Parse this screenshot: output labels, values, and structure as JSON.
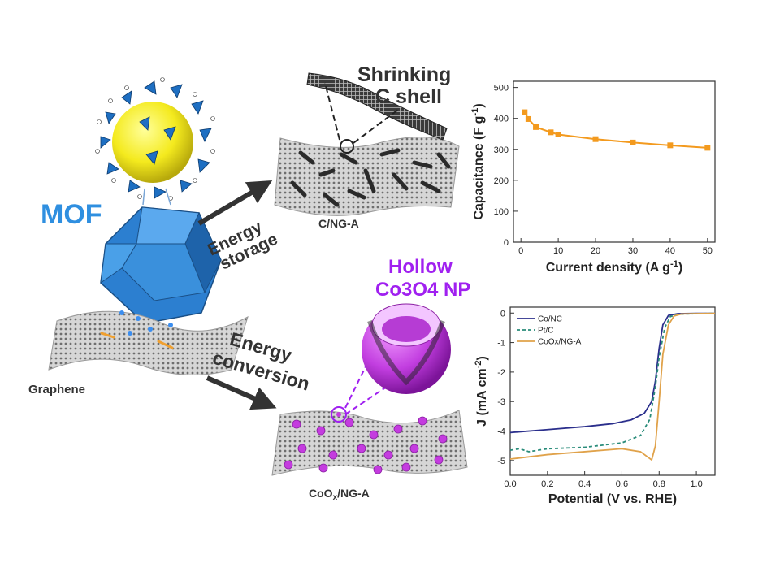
{
  "colors": {
    "mof_blue": "#2f8fe0",
    "hollow_purple": "#a020f0",
    "capacitance_orange": "#f39a1e",
    "co_nc_navy": "#2b2f8c",
    "pt_c_teal": "#2a8c7a",
    "coox_orange": "#e0a24a"
  },
  "labels": {
    "mof": "MOF",
    "graphene": "Graphene",
    "energy_storage_1": "Energy",
    "energy_storage_2": "storage",
    "energy_conversion_1": "Energy",
    "energy_conversion_2": "conversion",
    "shrinking_1": "Shrinking",
    "shrinking_2": "C shell",
    "c_ng_a": "C/NG-A",
    "hollow_1": "Hollow",
    "hollow_2": "Co3O4 NP",
    "coox_main": "CoO",
    "coox_sub": "x",
    "coox_rest": "/NG-A"
  },
  "chart_data": [
    {
      "type": "line",
      "xlabel": "Current density (A g-1)",
      "ylabel": "Capacitance (F g-1)",
      "xlim": [
        -2,
        52
      ],
      "ylim": [
        0,
        520
      ],
      "xticks": [
        "0",
        "10",
        "20",
        "30",
        "40",
        "50"
      ],
      "yticks": [
        "0",
        "100",
        "200",
        "300",
        "400",
        "500"
      ],
      "series": [
        {
          "x": [
            1,
            2,
            4,
            8,
            10,
            20,
            30,
            40,
            50
          ],
          "y": [
            420,
            398,
            372,
            355,
            348,
            333,
            322,
            313,
            305
          ]
        }
      ]
    },
    {
      "type": "line",
      "xlabel": "Potential (V vs. RHE)",
      "ylabel": "J (mA cm-2)",
      "xlim": [
        0.0,
        1.1
      ],
      "ylim": [
        -5.5,
        0.2
      ],
      "xticks": [
        "0.0",
        "0.2",
        "0.4",
        "0.6",
        "0.8",
        "1.0"
      ],
      "yticks": [
        "0",
        "-1",
        "-2",
        "-3",
        "-4",
        "-5"
      ],
      "legend": "top-left",
      "series": [
        {
          "name": "Co/NC",
          "x": [
            0.0,
            0.2,
            0.4,
            0.55,
            0.65,
            0.72,
            0.76,
            0.78,
            0.8,
            0.82,
            0.85,
            0.9,
            1.0,
            1.1
          ],
          "y": [
            -4.05,
            -3.95,
            -3.85,
            -3.75,
            -3.62,
            -3.4,
            -3.0,
            -2.3,
            -1.2,
            -0.4,
            -0.08,
            -0.02,
            -0.01,
            -0.01
          ]
        },
        {
          "name": "Pt/C",
          "x": [
            0.0,
            0.05,
            0.1,
            0.2,
            0.4,
            0.6,
            0.7,
            0.75,
            0.78,
            0.8,
            0.83,
            0.86,
            0.9,
            1.0,
            1.1
          ],
          "y": [
            -4.65,
            -4.6,
            -4.7,
            -4.6,
            -4.55,
            -4.4,
            -4.15,
            -3.6,
            -2.5,
            -1.5,
            -0.5,
            -0.12,
            -0.04,
            -0.02,
            -0.01
          ]
        },
        {
          "name": "CoOx/NG-A",
          "x": [
            0.0,
            0.2,
            0.4,
            0.6,
            0.7,
            0.76,
            0.78,
            0.8,
            0.82,
            0.85,
            0.88,
            0.92,
            1.0,
            1.1
          ],
          "y": [
            -4.95,
            -4.8,
            -4.7,
            -4.6,
            -4.7,
            -4.98,
            -4.5,
            -3.0,
            -1.4,
            -0.4,
            -0.1,
            -0.03,
            -0.02,
            -0.01
          ]
        }
      ]
    }
  ]
}
